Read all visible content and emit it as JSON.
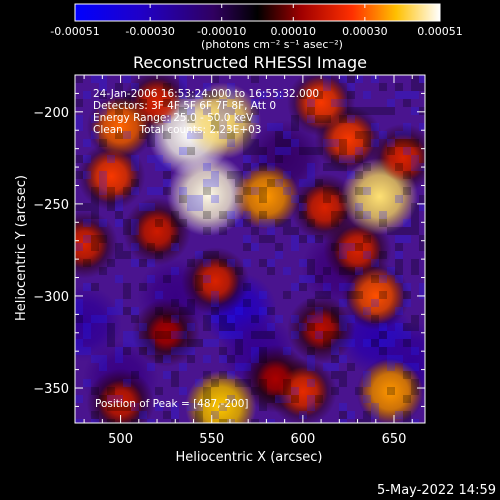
{
  "colorbar": {
    "range": [
      -0.00051,
      0.00051
    ],
    "tick_values": [
      -0.00051,
      -0.0003,
      -0.0001,
      0.0001,
      0.0003,
      0.00051
    ],
    "tick_labels": [
      "-0.00051",
      "-0.00030",
      "-0.00010",
      "0.00010",
      "0.00030",
      "0.00051"
    ],
    "units_label": "(photons cm⁻² s⁻¹ asec⁻²)",
    "colors": [
      "#0000ff",
      "#000000",
      "#ff0000",
      "#ffff00",
      "#ffffff"
    ]
  },
  "chart_data": {
    "type": "heatmap",
    "title": "Reconstructed RHESSI Image",
    "xlabel": "Heliocentric X (arcsec)",
    "ylabel": "Heliocentric Y (arcsec)",
    "xlim": [
      475,
      667
    ],
    "ylim": [
      -369,
      -180
    ],
    "x_ticks": [
      500,
      550,
      600,
      650
    ],
    "y_ticks": [
      -200,
      -250,
      -300,
      -350
    ],
    "grid": false,
    "peak_position": [
      487,
      -200
    ],
    "hotspots": [
      {
        "x": 500,
        "y": -208,
        "value": 0.0003
      },
      {
        "x": 538,
        "y": -212,
        "value": 0.00051
      },
      {
        "x": 556,
        "y": -205,
        "value": 0.00045
      },
      {
        "x": 610,
        "y": -195,
        "value": 0.00025
      },
      {
        "x": 548,
        "y": -245,
        "value": 0.0005
      },
      {
        "x": 580,
        "y": -246,
        "value": 0.00035
      },
      {
        "x": 612,
        "y": -252,
        "value": 0.0002
      },
      {
        "x": 642,
        "y": -246,
        "value": 0.00045
      },
      {
        "x": 630,
        "y": -275,
        "value": 0.0002
      },
      {
        "x": 520,
        "y": -265,
        "value": 0.00018
      },
      {
        "x": 495,
        "y": -235,
        "value": 0.00025
      },
      {
        "x": 552,
        "y": -292,
        "value": 0.0002
      },
      {
        "x": 640,
        "y": -300,
        "value": 0.00028
      },
      {
        "x": 610,
        "y": -318,
        "value": 0.00015
      },
      {
        "x": 600,
        "y": -352,
        "value": 0.00022
      },
      {
        "x": 648,
        "y": -352,
        "value": 0.00035
      },
      {
        "x": 500,
        "y": -358,
        "value": 0.00018
      },
      {
        "x": 555,
        "y": -360,
        "value": 0.0004
      },
      {
        "x": 585,
        "y": -345,
        "value": 0.00012
      },
      {
        "x": 625,
        "y": -215,
        "value": 0.00025
      },
      {
        "x": 655,
        "y": -225,
        "value": 0.0002
      },
      {
        "x": 520,
        "y": -195,
        "value": 0.0002
      },
      {
        "x": 480,
        "y": -272,
        "value": 0.0002
      },
      {
        "x": 525,
        "y": -320,
        "value": 0.00012
      }
    ],
    "coldspots": [
      {
        "x": 565,
        "y": -308,
        "value": -0.0003
      },
      {
        "x": 530,
        "y": -300,
        "value": -0.00015
      },
      {
        "x": 640,
        "y": -322,
        "value": -0.00025
      },
      {
        "x": 480,
        "y": -315,
        "value": -0.0002
      },
      {
        "x": 575,
        "y": -330,
        "value": -0.00018
      },
      {
        "x": 500,
        "y": -345,
        "value": -0.00015
      },
      {
        "x": 620,
        "y": -285,
        "value": -0.00012
      },
      {
        "x": 660,
        "y": -335,
        "value": -0.0002
      },
      {
        "x": 590,
        "y": -225,
        "value": -0.0001
      }
    ]
  },
  "annotations": {
    "time_range": "24-Jan-2006 16:53:24.000 to 16:55:32.000",
    "detectors": "Detectors: 3F 4F 5F 6F 7F 8F, Att 0",
    "energy_range": "Energy Range: 25.0 - 50.0 keV",
    "method_counts": "Clean     Total counts: 2.23E+03",
    "peak": "Position of Peak = [487,-200]"
  },
  "footer": {
    "date": "5-May-2022 14:59"
  }
}
